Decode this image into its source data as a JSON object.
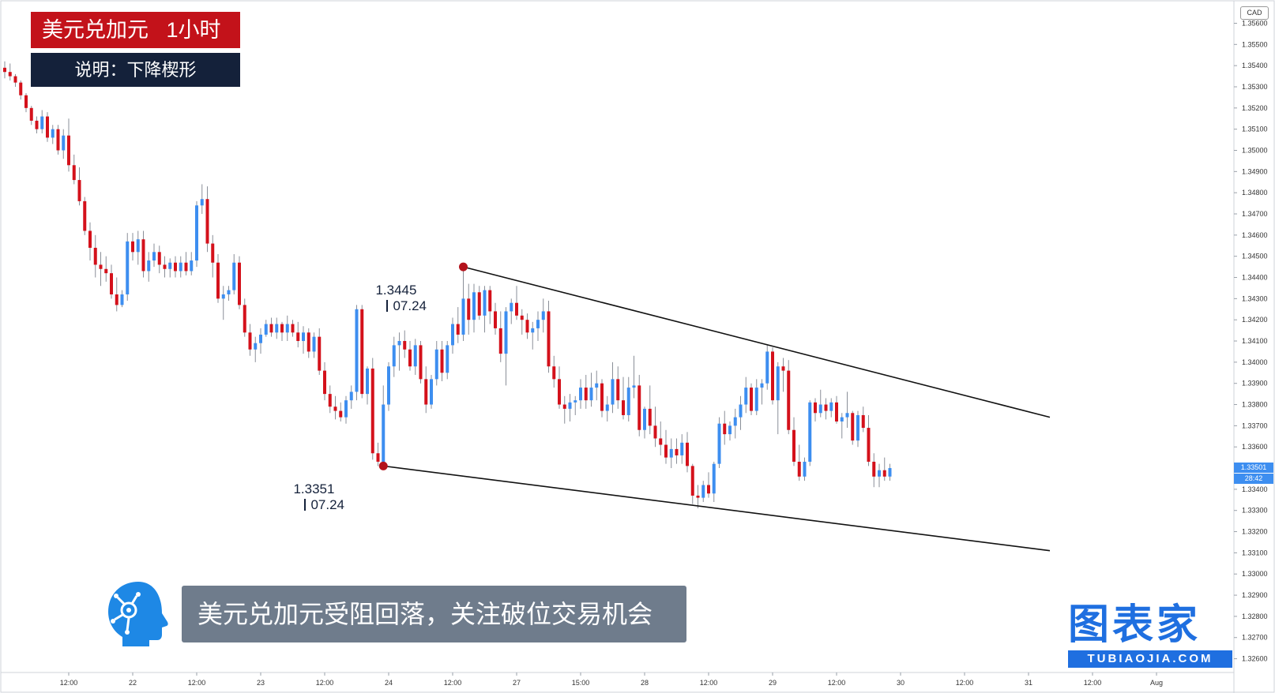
{
  "header": {
    "title": "美元兑加元   1小时",
    "subtitle": "说明：下降楔形"
  },
  "caption": "美元兑加元受阻回落，关注破位交易机会",
  "brand": {
    "main": "图表家",
    "sub": "TUBIAOJIA.COM"
  },
  "colors": {
    "up": "#3d8ef0",
    "down": "#d4111b",
    "title_bg": "#c3121a",
    "subtitle_bg": "#14213a",
    "caption_bg": "#6f7c8c",
    "brand": "#1f6fe0"
  },
  "annotations": {
    "high": {
      "price": "1.3445",
      "date": "07.24"
    },
    "low": {
      "price": "1.3351",
      "date": "07.24"
    }
  },
  "price_axis": {
    "currency": "CAD",
    "last_price": "1.33501",
    "countdown": "28:42",
    "ticks": [
      "1.35600",
      "1.35500",
      "1.35400",
      "1.35300",
      "1.35200",
      "1.35100",
      "1.35000",
      "1.34900",
      "1.34800",
      "1.34700",
      "1.34600",
      "1.34500",
      "1.34400",
      "1.34300",
      "1.34200",
      "1.34100",
      "1.34000",
      "1.33900",
      "1.33800",
      "1.33700",
      "1.33600",
      "1.33400",
      "1.33300",
      "1.33200",
      "1.33100",
      "1.33000",
      "1.32900",
      "1.32800",
      "1.32700",
      "1.32600"
    ]
  },
  "time_axis": {
    "ticks": [
      {
        "label": "12:00",
        "bar": 12
      },
      {
        "label": "22",
        "bar": 24
      },
      {
        "label": "12:00",
        "bar": 36
      },
      {
        "label": "23",
        "bar": 48
      },
      {
        "label": "12:00",
        "bar": 60
      },
      {
        "label": "24",
        "bar": 72
      },
      {
        "label": "12:00",
        "bar": 84
      },
      {
        "label": "27",
        "bar": 96
      },
      {
        "label": "15:00",
        "bar": 108
      },
      {
        "label": "28",
        "bar": 120
      },
      {
        "label": "12:00",
        "bar": 132
      },
      {
        "label": "29",
        "bar": 144
      },
      {
        "label": "12:00",
        "bar": 156
      },
      {
        "label": "30",
        "bar": 168
      },
      {
        "label": "12:00",
        "bar": 180
      },
      {
        "label": "31",
        "bar": 192
      },
      {
        "label": "12:00",
        "bar": 204
      },
      {
        "label": "Aug",
        "bar": 216
      }
    ]
  },
  "chart_data": {
    "type": "candlestick",
    "symbol": "USDCAD",
    "timeframe": "1H",
    "ylim": [
      1.3255,
      1.3568
    ],
    "candles": [
      [
        1.3539,
        1.3542,
        1.3534,
        1.3537
      ],
      [
        1.3537,
        1.3541,
        1.3533,
        1.3535
      ],
      [
        1.3535,
        1.3536,
        1.353,
        1.3532
      ],
      [
        1.3532,
        1.3533,
        1.3524,
        1.3526
      ],
      [
        1.3526,
        1.3527,
        1.3518,
        1.352
      ],
      [
        1.352,
        1.3521,
        1.3512,
        1.3514
      ],
      [
        1.3514,
        1.3516,
        1.3508,
        1.351
      ],
      [
        1.351,
        1.3519,
        1.3508,
        1.3516
      ],
      [
        1.3516,
        1.3518,
        1.3504,
        1.3506
      ],
      [
        1.3506,
        1.3512,
        1.3503,
        1.351
      ],
      [
        1.351,
        1.3512,
        1.3498,
        1.35
      ],
      [
        1.35,
        1.351,
        1.3496,
        1.3507
      ],
      [
        1.3507,
        1.3515,
        1.349,
        1.3493
      ],
      [
        1.3493,
        1.3498,
        1.3484,
        1.3486
      ],
      [
        1.3486,
        1.3492,
        1.3474,
        1.3476
      ],
      [
        1.3476,
        1.3478,
        1.346,
        1.3462
      ],
      [
        1.3462,
        1.3466,
        1.3448,
        1.3454
      ],
      [
        1.3454,
        1.346,
        1.344,
        1.3446
      ],
      [
        1.3446,
        1.3452,
        1.3436,
        1.3444
      ],
      [
        1.3444,
        1.345,
        1.3438,
        1.3442
      ],
      [
        1.3442,
        1.3446,
        1.343,
        1.3432
      ],
      [
        1.3432,
        1.344,
        1.3424,
        1.3427
      ],
      [
        1.3427,
        1.3434,
        1.3426,
        1.3432
      ],
      [
        1.3432,
        1.3461,
        1.3429,
        1.3457
      ],
      [
        1.3457,
        1.3461,
        1.3448,
        1.3452
      ],
      [
        1.3452,
        1.3462,
        1.3446,
        1.3458
      ],
      [
        1.3458,
        1.3462,
        1.344,
        1.3443
      ],
      [
        1.3443,
        1.3452,
        1.3438,
        1.3448
      ],
      [
        1.3448,
        1.3456,
        1.3445,
        1.3452
      ],
      [
        1.3452,
        1.3455,
        1.3442,
        1.3446
      ],
      [
        1.3446,
        1.345,
        1.344,
        1.3444
      ],
      [
        1.3444,
        1.3449,
        1.344,
        1.3447
      ],
      [
        1.3447,
        1.345,
        1.344,
        1.3443
      ],
      [
        1.3443,
        1.345,
        1.344,
        1.3447
      ],
      [
        1.3447,
        1.3452,
        1.3441,
        1.3443
      ],
      [
        1.3443,
        1.3452,
        1.3441,
        1.3448
      ],
      [
        1.3448,
        1.3476,
        1.3445,
        1.3474
      ],
      [
        1.3474,
        1.3484,
        1.347,
        1.3477
      ],
      [
        1.3477,
        1.3483,
        1.3452,
        1.3456
      ],
      [
        1.3456,
        1.346,
        1.344,
        1.3447
      ],
      [
        1.3447,
        1.3451,
        1.3428,
        1.343
      ],
      [
        1.343,
        1.3436,
        1.342,
        1.3432
      ],
      [
        1.3432,
        1.3436,
        1.3429,
        1.3434
      ],
      [
        1.3434,
        1.3451,
        1.3432,
        1.3447
      ],
      [
        1.3447,
        1.345,
        1.3425,
        1.3427
      ],
      [
        1.3427,
        1.343,
        1.3412,
        1.3414
      ],
      [
        1.3414,
        1.3418,
        1.3403,
        1.3406
      ],
      [
        1.3406,
        1.3412,
        1.34,
        1.3409
      ],
      [
        1.3409,
        1.3416,
        1.3404,
        1.3413
      ],
      [
        1.3413,
        1.342,
        1.3412,
        1.3418
      ],
      [
        1.3418,
        1.3421,
        1.3412,
        1.3414
      ],
      [
        1.3414,
        1.3421,
        1.3411,
        1.3418
      ],
      [
        1.3418,
        1.3419,
        1.341,
        1.3414
      ],
      [
        1.3414,
        1.3422,
        1.341,
        1.3418
      ],
      [
        1.3418,
        1.342,
        1.3412,
        1.3414
      ],
      [
        1.3414,
        1.3419,
        1.3407,
        1.341
      ],
      [
        1.341,
        1.3417,
        1.3404,
        1.3414
      ],
      [
        1.3414,
        1.3416,
        1.3402,
        1.3405
      ],
      [
        1.3405,
        1.3414,
        1.3402,
        1.3412
      ],
      [
        1.3412,
        1.3416,
        1.3394,
        1.3396
      ],
      [
        1.3396,
        1.34,
        1.3382,
        1.3385
      ],
      [
        1.3385,
        1.3389,
        1.3376,
        1.3379
      ],
      [
        1.3379,
        1.3384,
        1.3373,
        1.3377
      ],
      [
        1.3377,
        1.3381,
        1.3372,
        1.3374
      ],
      [
        1.3374,
        1.3384,
        1.3371,
        1.3382
      ],
      [
        1.3382,
        1.3389,
        1.3378,
        1.3386
      ],
      [
        1.3386,
        1.3427,
        1.3382,
        1.3425
      ],
      [
        1.3425,
        1.3427,
        1.3383,
        1.3385
      ],
      [
        1.3385,
        1.3398,
        1.338,
        1.3397
      ],
      [
        1.3397,
        1.3402,
        1.3354,
        1.3357
      ],
      [
        1.3357,
        1.3362,
        1.3351,
        1.3353
      ],
      [
        1.3353,
        1.3389,
        1.3351,
        1.338
      ],
      [
        1.338,
        1.34,
        1.3377,
        1.3398
      ],
      [
        1.3398,
        1.3412,
        1.3393,
        1.3408
      ],
      [
        1.3408,
        1.3414,
        1.3396,
        1.341
      ],
      [
        1.341,
        1.3415,
        1.3402,
        1.3406
      ],
      [
        1.3406,
        1.341,
        1.3396,
        1.3398
      ],
      [
        1.3398,
        1.3411,
        1.3394,
        1.3408
      ],
      [
        1.3408,
        1.341,
        1.339,
        1.3392
      ],
      [
        1.3392,
        1.3398,
        1.3376,
        1.338
      ],
      [
        1.338,
        1.3394,
        1.3378,
        1.3392
      ],
      [
        1.3392,
        1.341,
        1.3389,
        1.3406
      ],
      [
        1.3406,
        1.341,
        1.3391,
        1.3395
      ],
      [
        1.3395,
        1.341,
        1.3392,
        1.3408
      ],
      [
        1.3408,
        1.3421,
        1.3404,
        1.3418
      ],
      [
        1.3418,
        1.3426,
        1.3409,
        1.3413
      ],
      [
        1.3413,
        1.3445,
        1.341,
        1.343
      ],
      [
        1.343,
        1.3437,
        1.3413,
        1.342
      ],
      [
        1.342,
        1.3437,
        1.3414,
        1.3433
      ],
      [
        1.3433,
        1.3436,
        1.342,
        1.3422
      ],
      [
        1.3422,
        1.3436,
        1.3414,
        1.3434
      ],
      [
        1.3434,
        1.3436,
        1.3418,
        1.3424
      ],
      [
        1.3424,
        1.3428,
        1.3413,
        1.3416
      ],
      [
        1.3416,
        1.3424,
        1.34,
        1.3404
      ],
      [
        1.3404,
        1.3426,
        1.3389,
        1.3424
      ],
      [
        1.3424,
        1.343,
        1.3418,
        1.3428
      ],
      [
        1.3428,
        1.3436,
        1.342,
        1.3422
      ],
      [
        1.3422,
        1.3425,
        1.3413,
        1.342
      ],
      [
        1.342,
        1.3423,
        1.3411,
        1.3414
      ],
      [
        1.3414,
        1.3419,
        1.3406,
        1.3416
      ],
      [
        1.3416,
        1.3424,
        1.341,
        1.342
      ],
      [
        1.342,
        1.343,
        1.3414,
        1.3424
      ],
      [
        1.3424,
        1.3429,
        1.3395,
        1.3398
      ],
      [
        1.3398,
        1.3403,
        1.3388,
        1.3392
      ],
      [
        1.3392,
        1.3398,
        1.3378,
        1.338
      ],
      [
        1.338,
        1.3384,
        1.3371,
        1.3378
      ],
      [
        1.3378,
        1.3385,
        1.3372,
        1.3381
      ],
      [
        1.3381,
        1.3384,
        1.3375,
        1.3382
      ],
      [
        1.3382,
        1.3392,
        1.3378,
        1.3388
      ],
      [
        1.3388,
        1.3394,
        1.3378,
        1.3382
      ],
      [
        1.3382,
        1.3395,
        1.3379,
        1.3388
      ],
      [
        1.3388,
        1.3396,
        1.3382,
        1.339
      ],
      [
        1.339,
        1.3392,
        1.3374,
        1.3377
      ],
      [
        1.3377,
        1.3384,
        1.3372,
        1.338
      ],
      [
        1.338,
        1.34,
        1.3376,
        1.3392
      ],
      [
        1.3392,
        1.3398,
        1.3378,
        1.3382
      ],
      [
        1.3382,
        1.3393,
        1.3373,
        1.3375
      ],
      [
        1.3375,
        1.3393,
        1.3372,
        1.3388
      ],
      [
        1.3388,
        1.3403,
        1.3383,
        1.3389
      ],
      [
        1.3389,
        1.3394,
        1.3365,
        1.3368
      ],
      [
        1.3368,
        1.3379,
        1.3364,
        1.3378
      ],
      [
        1.3378,
        1.3389,
        1.3366,
        1.337
      ],
      [
        1.337,
        1.3379,
        1.336,
        1.3364
      ],
      [
        1.3364,
        1.3372,
        1.3356,
        1.3361
      ],
      [
        1.3361,
        1.3368,
        1.3352,
        1.3355
      ],
      [
        1.3355,
        1.3364,
        1.335,
        1.3359
      ],
      [
        1.3359,
        1.3364,
        1.3352,
        1.3356
      ],
      [
        1.3356,
        1.3366,
        1.3352,
        1.3362
      ],
      [
        1.3362,
        1.3367,
        1.3348,
        1.3351
      ],
      [
        1.3351,
        1.3352,
        1.3333,
        1.3337
      ],
      [
        1.3337,
        1.3342,
        1.3331,
        1.3336
      ],
      [
        1.3336,
        1.3344,
        1.3334,
        1.3342
      ],
      [
        1.3342,
        1.3348,
        1.3336,
        1.3338
      ],
      [
        1.3338,
        1.3353,
        1.3334,
        1.3352
      ],
      [
        1.3352,
        1.3374,
        1.335,
        1.3371
      ],
      [
        1.3371,
        1.3377,
        1.3361,
        1.3366
      ],
      [
        1.3366,
        1.3372,
        1.3363,
        1.337
      ],
      [
        1.337,
        1.3378,
        1.3364,
        1.3374
      ],
      [
        1.3374,
        1.3384,
        1.3368,
        1.338
      ],
      [
        1.338,
        1.3393,
        1.3376,
        1.3388
      ],
      [
        1.3388,
        1.339,
        1.3375,
        1.3377
      ],
      [
        1.3377,
        1.3392,
        1.3375,
        1.3388
      ],
      [
        1.3388,
        1.3392,
        1.338,
        1.339
      ],
      [
        1.339,
        1.3408,
        1.3387,
        1.3405
      ],
      [
        1.3405,
        1.3407,
        1.338,
        1.3382
      ],
      [
        1.3382,
        1.34,
        1.3366,
        1.3398
      ],
      [
        1.3398,
        1.3402,
        1.3386,
        1.3396
      ],
      [
        1.3396,
        1.3401,
        1.3366,
        1.3368
      ],
      [
        1.3368,
        1.3374,
        1.3351,
        1.3353
      ],
      [
        1.3353,
        1.3361,
        1.3344,
        1.3346
      ],
      [
        1.3346,
        1.3355,
        1.3344,
        1.3353
      ],
      [
        1.3353,
        1.3382,
        1.3351,
        1.3381
      ],
      [
        1.3381,
        1.3383,
        1.3372,
        1.3376
      ],
      [
        1.3376,
        1.3387,
        1.3374,
        1.338
      ],
      [
        1.338,
        1.3383,
        1.3373,
        1.3377
      ],
      [
        1.3377,
        1.3383,
        1.3374,
        1.3381
      ],
      [
        1.3381,
        1.3384,
        1.3371,
        1.3372
      ],
      [
        1.3372,
        1.3376,
        1.3364,
        1.3374
      ],
      [
        1.3374,
        1.3386,
        1.3369,
        1.3376
      ],
      [
        1.3376,
        1.3377,
        1.3361,
        1.3363
      ],
      [
        1.3363,
        1.3377,
        1.336,
        1.3375
      ],
      [
        1.3375,
        1.3379,
        1.3367,
        1.3369
      ],
      [
        1.3369,
        1.3375,
        1.3351,
        1.3353
      ],
      [
        1.3353,
        1.3357,
        1.3341,
        1.3346
      ],
      [
        1.3346,
        1.3352,
        1.3341,
        1.3349
      ],
      [
        1.3349,
        1.3355,
        1.3344,
        1.3346
      ],
      [
        1.3346,
        1.3352,
        1.3344,
        1.335
      ]
    ],
    "trendlines": [
      {
        "name": "upper",
        "from": {
          "bar": 86,
          "price": 1.3445
        },
        "to": {
          "bar": 196,
          "price": 1.3374
        }
      },
      {
        "name": "lower",
        "from": {
          "bar": 71,
          "price": 1.3351
        },
        "to": {
          "bar": 196,
          "price": 1.3311
        }
      }
    ],
    "last_price": 1.33501,
    "grid": false
  }
}
